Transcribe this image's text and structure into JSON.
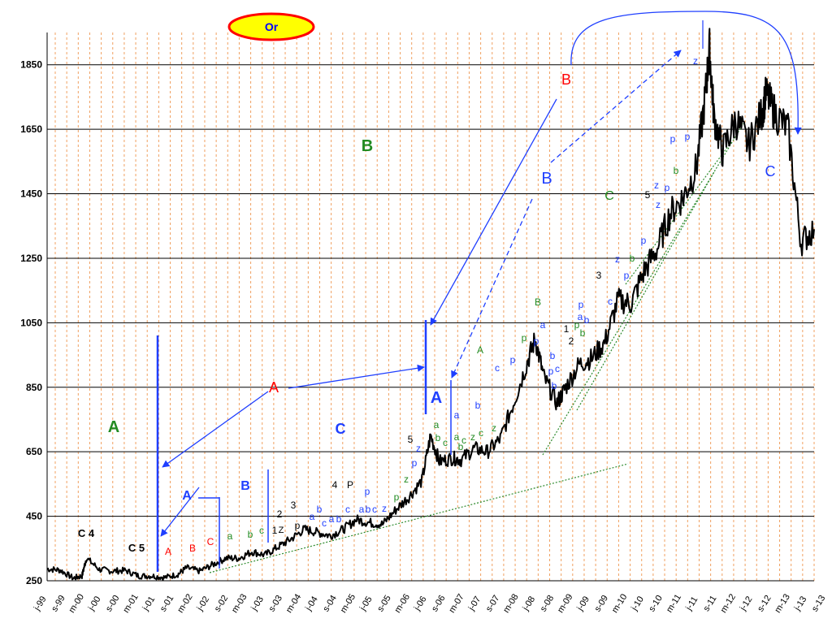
{
  "chart_data": {
    "type": "line",
    "title": "Or",
    "xlabel": "",
    "ylabel": "",
    "ylim": [
      250,
      1950
    ],
    "x_range": [
      "1999-01",
      "2013-09"
    ],
    "yticks": [
      250,
      450,
      650,
      850,
      1050,
      1250,
      1450,
      1650,
      1850
    ],
    "xtick_labels": [
      "j-99",
      "s-99",
      "m-00",
      "j-00",
      "s-00",
      "m-01",
      "j-01",
      "s-01",
      "m-02",
      "j-02",
      "s-02",
      "m-03",
      "j-03",
      "s-03",
      "m-04",
      "j-04",
      "s-04",
      "m-05",
      "j-05",
      "s-05",
      "m-06",
      "j-06",
      "s-06",
      "m-07",
      "j-07",
      "s-07",
      "m-08",
      "j-08",
      "s-08",
      "m-09",
      "j-09",
      "s-09",
      "m-10",
      "j-10",
      "s-10",
      "m-11",
      "j-11",
      "s-11",
      "m-12",
      "j-12",
      "s-12",
      "m-13",
      "j-13",
      "s-13"
    ],
    "grid": {
      "horizontal": true,
      "vertical": true
    },
    "series": [
      {
        "color": "#000000",
        "x": [
          "1999-01",
          "1999-04",
          "1999-07",
          "1999-09",
          "1999-10",
          "2000-01",
          "2000-04",
          "2000-07",
          "2000-10",
          "2001-01",
          "2001-04",
          "2001-07",
          "2001-09",
          "2001-12",
          "2002-03",
          "2002-06",
          "2002-09",
          "2002-12",
          "2003-03",
          "2003-06",
          "2003-09",
          "2003-12",
          "2004-03",
          "2004-06",
          "2004-09",
          "2004-12",
          "2005-03",
          "2005-06",
          "2005-09",
          "2005-12",
          "2006-03",
          "2006-05",
          "2006-07",
          "2006-10",
          "2006-12",
          "2007-03",
          "2007-06",
          "2007-09",
          "2007-12",
          "2008-03",
          "2008-05",
          "2008-07",
          "2008-10",
          "2008-12",
          "2009-03",
          "2009-06",
          "2009-09",
          "2009-12",
          "2010-03",
          "2010-06",
          "2010-09",
          "2010-12",
          "2011-03",
          "2011-06",
          "2011-08",
          "2011-09",
          "2011-10",
          "2011-12",
          "2012-03",
          "2012-06",
          "2012-09",
          "2012-10",
          "2012-12",
          "2013-03",
          "2013-06",
          "2013-09"
        ],
        "values": [
          287,
          283,
          258,
          265,
          320,
          285,
          280,
          282,
          265,
          265,
          260,
          270,
          290,
          280,
          300,
          320,
          320,
          340,
          330,
          355,
          380,
          410,
          400,
          390,
          410,
          440,
          430,
          425,
          470,
          510,
          560,
          700,
          620,
          630,
          625,
          660,
          650,
          690,
          800,
          920,
          1000,
          880,
          800,
          850,
          920,
          940,
          990,
          1120,
          1110,
          1210,
          1280,
          1390,
          1440,
          1530,
          1750,
          1900,
          1690,
          1580,
          1680,
          1600,
          1700,
          1760,
          1700,
          1650,
          1300,
          1340
        ]
      }
    ],
    "annotations": [
      "C 4",
      "C 5",
      "A",
      "B",
      "C",
      "a",
      "b",
      "c",
      "A",
      "B",
      "1",
      "2",
      "3",
      "Z",
      "p",
      "a",
      "b",
      "c",
      "a",
      "b",
      "4",
      "P",
      "c",
      "p",
      "a",
      "b",
      "c",
      "z",
      "p",
      "p",
      "z",
      "5",
      "A",
      "a",
      "b",
      "c",
      "a",
      "a",
      "b",
      "c",
      "b",
      "z",
      "c",
      "p",
      "A",
      "p",
      "a",
      "B",
      "b",
      "c",
      "b",
      "p",
      "1",
      "2",
      "p",
      "b",
      "p",
      "a",
      "b",
      "3",
      "z",
      "c",
      "p",
      "b",
      "C",
      "B",
      "5",
      "z",
      "z",
      "p",
      "b",
      "p",
      "p",
      "z",
      "B",
      "C",
      "A",
      "B",
      "C",
      "A",
      "B",
      "C",
      "Or"
    ]
  }
}
